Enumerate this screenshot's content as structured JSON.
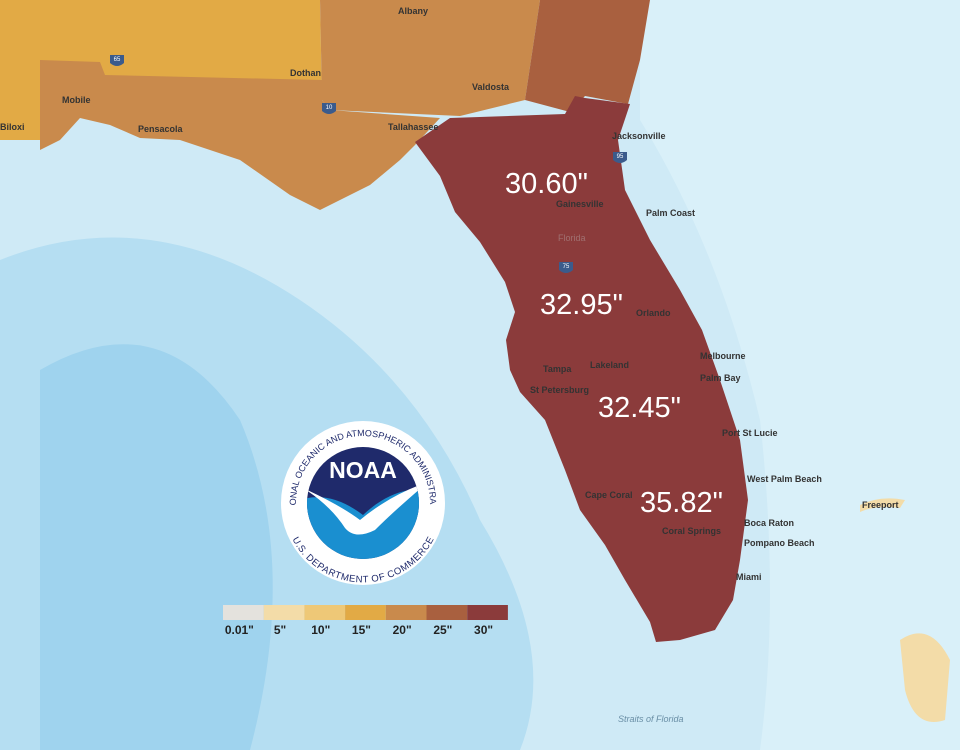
{
  "region_values": [
    "30.60\"",
    "32.95\"",
    "32.45\"",
    "35.82\""
  ],
  "legend": {
    "labels": [
      "0.01\"",
      "5\"",
      "10\"",
      "15\"",
      "20\"",
      "25\"",
      "30\""
    ],
    "colors": [
      "#e4e2dd",
      "#f3dca8",
      "#eec877",
      "#e2aa45",
      "#c98a4c",
      "#a9603f",
      "#8b3b3b"
    ]
  },
  "places": [
    "Albany",
    "Dothan",
    "Mobile",
    "Pensacola",
    "Valdosta",
    "Tallahassee",
    "Jacksonville",
    "Gainesville",
    "Palm Coast",
    "Florida",
    "Orlando",
    "Tampa",
    "Lakeland",
    "St Petersburg",
    "Melbourne",
    "Palm Bay",
    "Port St Lucie",
    "West Palm Beach",
    "Cape Coral",
    "Coral Springs",
    "Boca Raton",
    "Pompano Beach",
    "Miami",
    "Freeport",
    "Biloxi",
    "Straits of Florida"
  ],
  "shields": [
    "65",
    "10",
    "95",
    "75"
  ],
  "logo": {
    "acronym": "NOAA",
    "ring_top": "NATIONAL OCEANIC AND ATMOSPHERIC ADMINISTRATION",
    "ring_bottom": "U.S. DEPARTMENT OF COMMERCE"
  }
}
